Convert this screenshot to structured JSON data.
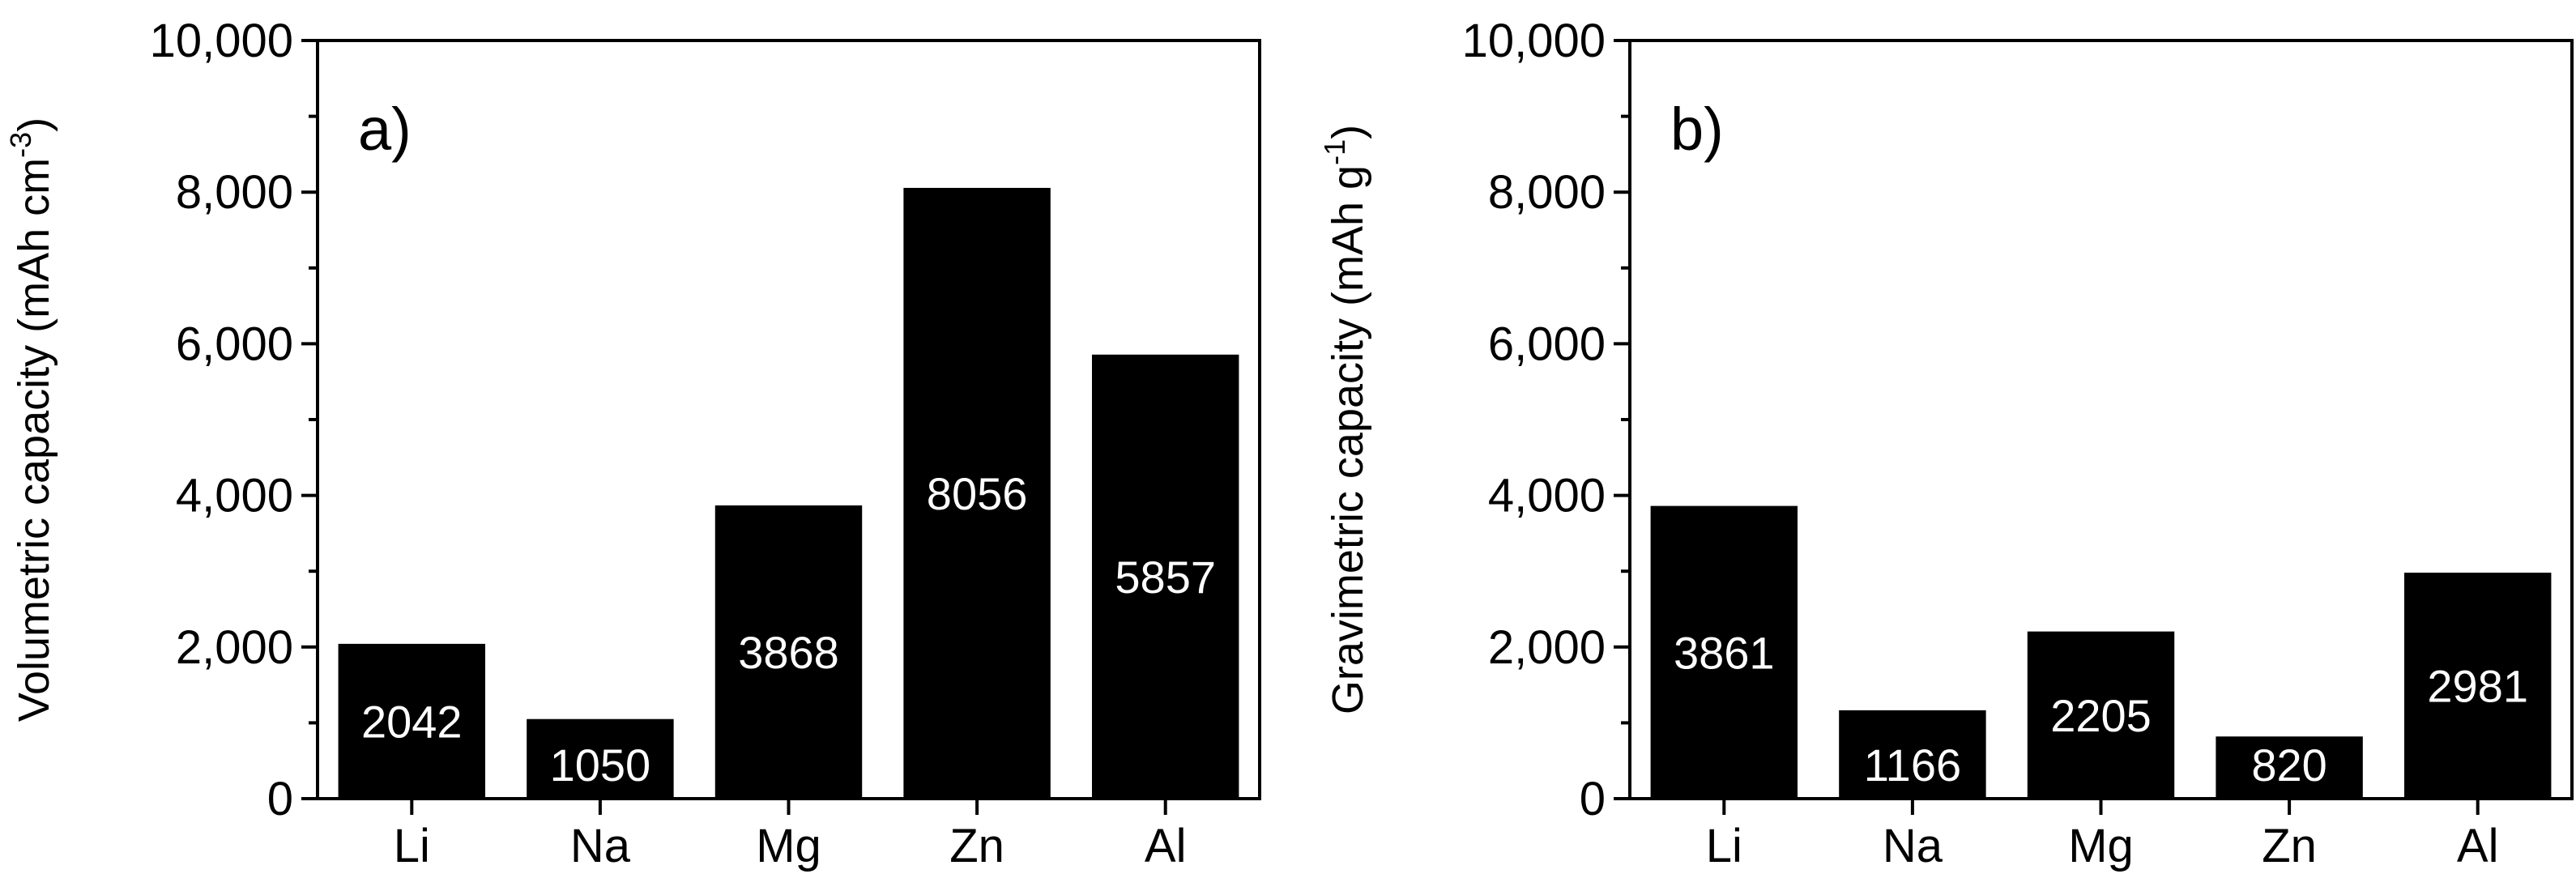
{
  "chart_data": [
    {
      "type": "bar",
      "panel_label": "a)",
      "categories": [
        "Li",
        "Na",
        "Mg",
        "Zn",
        "Al"
      ],
      "values": [
        2042,
        1050,
        3868,
        8056,
        5857
      ],
      "value_labels": [
        "2042",
        "1050",
        "3868",
        "8056",
        "5857"
      ],
      "ylabel": "Volumetric capacity (mAh cm",
      "ylabel_sup": "-3",
      "ylabel_end": ")",
      "ylim": [
        0,
        10000
      ],
      "yticks": [
        0,
        2000,
        4000,
        6000,
        8000,
        10000
      ],
      "ytick_labels": [
        "0",
        "2,000",
        "4,000",
        "6,000",
        "8,000",
        "10,000"
      ],
      "bar_color": "#000000",
      "label_color": "#ffffff",
      "grid": false
    },
    {
      "type": "bar",
      "panel_label": "b)",
      "categories": [
        "Li",
        "Na",
        "Mg",
        "Zn",
        "Al"
      ],
      "values": [
        3861,
        1166,
        2205,
        820,
        2981
      ],
      "value_labels": [
        "3861",
        "1166",
        "2205",
        "820",
        "2981"
      ],
      "ylabel": "Gravimetric capacity (mAh g",
      "ylabel_sup": "-1",
      "ylabel_end": ")",
      "ylim": [
        0,
        10000
      ],
      "yticks": [
        0,
        2000,
        4000,
        6000,
        8000,
        10000
      ],
      "ytick_labels": [
        "0",
        "2,000",
        "4,000",
        "6,000",
        "8,000",
        "10,000"
      ],
      "bar_color": "#000000",
      "label_color": "#ffffff",
      "grid": false
    }
  ]
}
